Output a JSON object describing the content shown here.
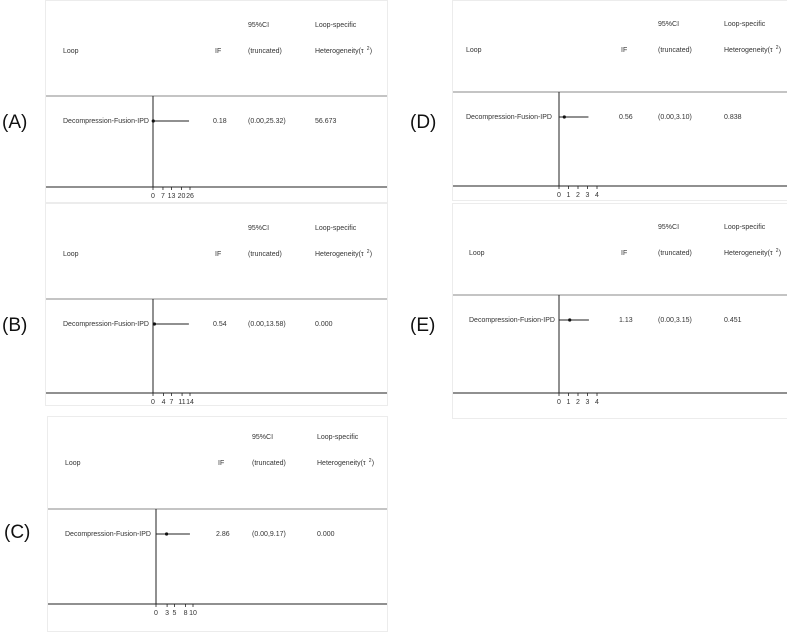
{
  "header": {
    "loop": "Loop",
    "if": "IF",
    "ci_line1": "95%CI",
    "ci_line2": "(truncated)",
    "het_line1": "Loop-specific",
    "het_line2_main": "Heterogeneity(τ",
    "het_line2_sup": "2",
    "het_line2_close": ")"
  },
  "chart_data": [
    {
      "type": "forest",
      "panel_label": "(A)",
      "row": {
        "loop": "Decompression-Fusion-IPD",
        "if": "0.18",
        "ci": "(0.00,25.32)",
        "heterogeneity": "56.673"
      },
      "estimate": 0.18,
      "ci_low": 0.0,
      "ci_high": 25.32,
      "ticks": [
        0,
        7,
        13,
        20,
        26
      ],
      "xlim": [
        0,
        26
      ]
    },
    {
      "type": "forest",
      "panel_label": "(B)",
      "row": {
        "loop": "Decompression-Fusion-IPD",
        "if": "0.54",
        "ci": "(0.00,13.58)",
        "heterogeneity": "0.000"
      },
      "estimate": 0.54,
      "ci_low": 0.0,
      "ci_high": 13.58,
      "ticks": [
        0,
        4,
        7,
        11,
        14
      ],
      "xlim": [
        0,
        14
      ]
    },
    {
      "type": "forest",
      "panel_label": "(C)",
      "row": {
        "loop": "Decompression-Fusion-IPD",
        "if": "2.86",
        "ci": "(0.00,9.17)",
        "heterogeneity": "0.000"
      },
      "estimate": 2.86,
      "ci_low": 0.0,
      "ci_high": 9.17,
      "ticks": [
        0,
        3,
        5,
        8,
        10
      ],
      "xlim": [
        0,
        10
      ]
    },
    {
      "type": "forest",
      "panel_label": "(D)",
      "row": {
        "loop": "Decompression-Fusion-IPD",
        "if": "0.56",
        "ci": "(0.00,3.10)",
        "heterogeneity": "0.838"
      },
      "estimate": 0.56,
      "ci_low": 0.0,
      "ci_high": 3.1,
      "ticks": [
        0,
        1,
        2,
        3,
        4
      ],
      "xlim": [
        0,
        4
      ]
    },
    {
      "type": "forest",
      "panel_label": "(E)",
      "row": {
        "loop": "Decompression-Fusion-IPD",
        "if": "1.13",
        "ci": "(0.00,3.15)",
        "heterogeneity": "0.451"
      },
      "estimate": 1.13,
      "ci_low": 0.0,
      "ci_high": 3.15,
      "ticks": [
        0,
        1,
        2,
        3,
        4
      ],
      "xlim": [
        0,
        4
      ]
    }
  ]
}
